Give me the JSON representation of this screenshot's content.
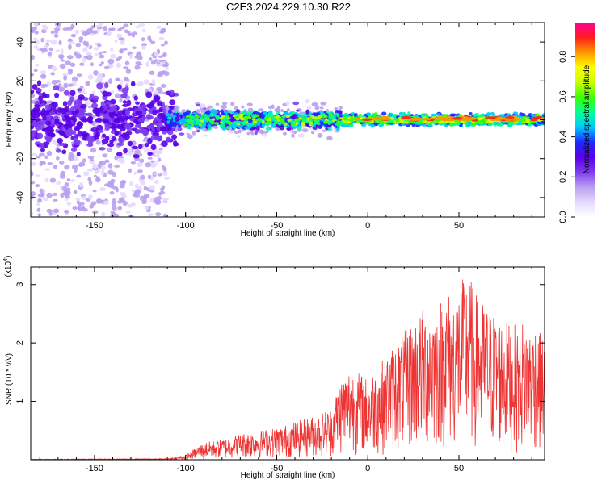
{
  "title": "C2E3.2024.229.10.30.R22",
  "colors": {
    "snr_line": "#ee3333",
    "colormap": [
      "#ffffff",
      "#e6d8ff",
      "#b9a0f0",
      "#7e3cf0",
      "#5a00e6",
      "#1e28ff",
      "#00c8ff",
      "#00ff96",
      "#3cff00",
      "#c8ff00",
      "#ffff00",
      "#ff9600",
      "#ff1e1e",
      "#ff0096"
    ]
  },
  "chart_data": [
    {
      "type": "heatmap",
      "xlabel": "Height of straight line (km)",
      "ylabel": "Frequency (Hz)",
      "xlim": [
        -185,
        97
      ],
      "ylim": [
        -50,
        50
      ],
      "xticks": [
        -150,
        -100,
        -50,
        0,
        50
      ],
      "yticks": [
        -40,
        -20,
        0,
        20,
        40
      ],
      "colorbar": {
        "label": "Normalized spectral amplitude",
        "range": [
          0.0,
          0.97
        ],
        "ticks": [
          "0.0",
          "0.2",
          "0.4",
          "0.6",
          "0.8"
        ]
      }
    },
    {
      "type": "line",
      "xlabel": "Height of straight line (km)",
      "ylabel": "SNR (10 * v/v)",
      "scale_note": "(x10",
      "scale_exp": "4",
      "scale_close": ")",
      "xlim": [
        -185,
        97
      ],
      "ylim": [
        0,
        3.3
      ],
      "xticks": [
        -150,
        -100,
        -50,
        0,
        50
      ],
      "yticks": [
        1,
        2,
        3
      ],
      "series": [
        {
          "envelope_x": [
            -185,
            -110,
            -100,
            -90,
            -80,
            -70,
            -60,
            -50,
            -40,
            -30,
            -20,
            -15,
            -10,
            -5,
            0,
            10,
            20,
            30,
            40,
            50,
            55,
            60,
            70,
            80,
            90,
            97
          ],
          "envelope_y": [
            0.01,
            0.02,
            0.08,
            0.3,
            0.35,
            0.45,
            0.5,
            0.55,
            0.65,
            0.75,
            0.9,
            1.4,
            1.6,
            1.5,
            1.4,
            1.8,
            2.2,
            2.6,
            2.8,
            3.0,
            3.25,
            2.8,
            2.5,
            2.3,
            2.5,
            2.0
          ]
        }
      ]
    }
  ]
}
